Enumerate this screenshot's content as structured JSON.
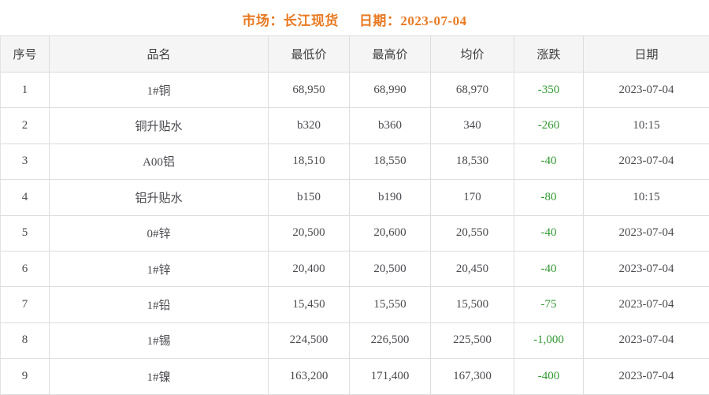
{
  "page": {
    "title": {
      "market": "市场：长江现货",
      "date": "日期：2023-07-04"
    },
    "colors": {
      "title_orange": "#e87a22",
      "negative_green": "#339933",
      "header_bg": "#f5f5f5",
      "border": "#dddddd",
      "cell_text": "#4a4a50"
    }
  },
  "table": {
    "columns": [
      {
        "key": "index",
        "label": "序号"
      },
      {
        "key": "name",
        "label": "品名"
      },
      {
        "key": "low",
        "label": "最低价"
      },
      {
        "key": "high",
        "label": "最高价"
      },
      {
        "key": "avg",
        "label": "均价"
      },
      {
        "key": "change",
        "label": "涨跌"
      },
      {
        "key": "date",
        "label": "日期"
      }
    ],
    "rows": [
      {
        "index": "1",
        "name": "1#铜",
        "low": "68,950",
        "high": "68,990",
        "avg": "68,970",
        "change": "-350",
        "date": "2023-07-04"
      },
      {
        "index": "2",
        "name": "铜升贴水",
        "low": "b320",
        "high": "b360",
        "avg": "340",
        "change": "-260",
        "date": "10:15"
      },
      {
        "index": "3",
        "name": "A00铝",
        "low": "18,510",
        "high": "18,550",
        "avg": "18,530",
        "change": "-40",
        "date": "2023-07-04"
      },
      {
        "index": "4",
        "name": "铝升贴水",
        "low": "b150",
        "high": "b190",
        "avg": "170",
        "change": "-80",
        "date": "10:15"
      },
      {
        "index": "5",
        "name": "0#锌",
        "low": "20,500",
        "high": "20,600",
        "avg": "20,550",
        "change": "-40",
        "date": "2023-07-04"
      },
      {
        "index": "6",
        "name": "1#锌",
        "low": "20,400",
        "high": "20,500",
        "avg": "20,450",
        "change": "-40",
        "date": "2023-07-04"
      },
      {
        "index": "7",
        "name": "1#铅",
        "low": "15,450",
        "high": "15,550",
        "avg": "15,500",
        "change": "-75",
        "date": "2023-07-04"
      },
      {
        "index": "8",
        "name": "1#锡",
        "low": "224,500",
        "high": "226,500",
        "avg": "225,500",
        "change": "-1,000",
        "date": "2023-07-04"
      },
      {
        "index": "9",
        "name": "1#镍",
        "low": "163,200",
        "high": "171,400",
        "avg": "167,300",
        "change": "-400",
        "date": "2023-07-04"
      }
    ]
  }
}
